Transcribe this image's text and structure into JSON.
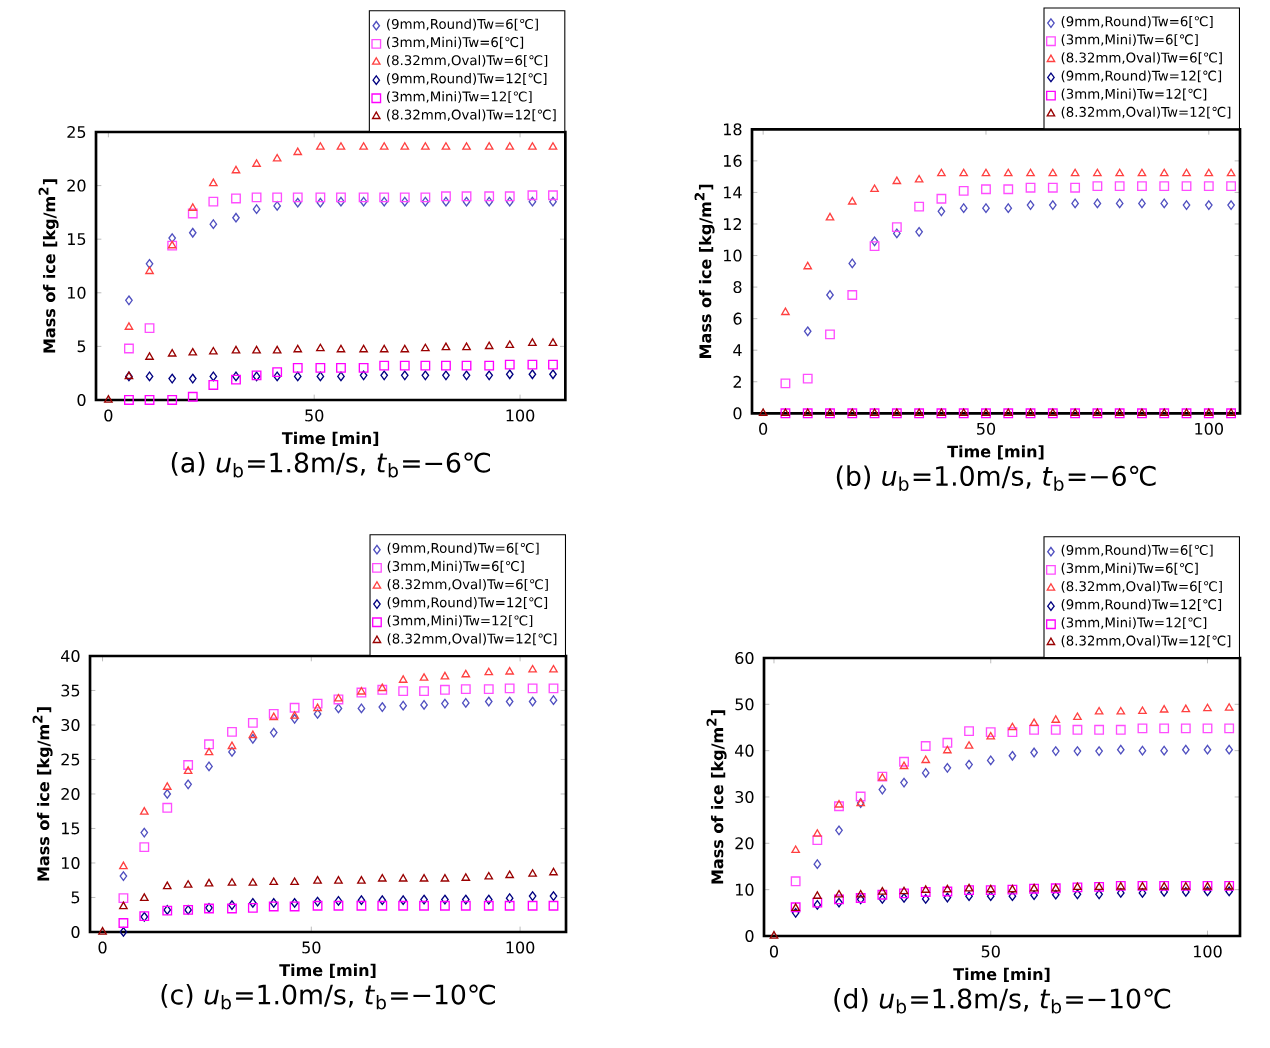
{
  "chart_data": [
    {
      "type": "scatter",
      "title": "(a) *u*$_{b}$=1.8m/s, *t*$_{b}$=−6℃",
      "xlabel": "Time [min]",
      "ylabel": "Mass of ice [kg/m$^{2}$]",
      "xlim": [
        -3,
        111
      ],
      "ylim": [
        0,
        25
      ],
      "xticks": [
        0,
        50,
        100
      ],
      "yticks": [
        0,
        5,
        10,
        15,
        20,
        25
      ],
      "legend": "top right",
      "x": [
        0,
        5,
        10,
        15.5,
        20.5,
        25.5,
        31,
        36,
        41,
        46,
        51.5,
        56.5,
        62,
        67,
        72,
        77,
        82,
        87,
        92.5,
        97.5,
        103,
        108
      ],
      "series": [
        {
          "name": "(9mm,Round)Tw=6[℃]",
          "color": "#5050c0",
          "marker": "diamond",
          "values": [
            null,
            9.3,
            12.7,
            15.1,
            15.6,
            16.4,
            17.0,
            17.8,
            18.1,
            18.4,
            18.4,
            18.5,
            18.5,
            18.5,
            18.5,
            18.5,
            18.5,
            18.5,
            18.5,
            18.5,
            18.5,
            18.5
          ]
        },
        {
          "name": "(3mm,Mini)Tw=6[℃]",
          "color": "#ff4dff",
          "marker": "square",
          "values": [
            null,
            4.8,
            6.7,
            14.4,
            17.4,
            18.5,
            18.8,
            18.9,
            18.9,
            18.9,
            18.9,
            18.9,
            18.9,
            18.9,
            18.9,
            18.9,
            19.0,
            19.0,
            19.0,
            19.0,
            19.1,
            19.1
          ]
        },
        {
          "name": "(8.32mm,Oval)Tw=6[℃]",
          "color": "#ff4040",
          "marker": "triangle",
          "values": [
            null,
            6.8,
            12.0,
            14.4,
            17.9,
            20.2,
            21.4,
            22.0,
            22.5,
            23.1,
            23.6,
            23.6,
            23.6,
            23.6,
            23.6,
            23.6,
            23.6,
            23.6,
            23.6,
            23.6,
            23.6,
            23.6
          ]
        },
        {
          "name": "(9mm,Round)Tw=12[℃]",
          "color": "#000080",
          "marker": "diamond",
          "values": [
            null,
            2.2,
            2.2,
            2.0,
            2.0,
            2.2,
            2.2,
            2.2,
            2.2,
            2.2,
            2.2,
            2.2,
            2.3,
            2.3,
            2.3,
            2.3,
            2.3,
            2.3,
            2.3,
            2.4,
            2.4,
            2.4
          ]
        },
        {
          "name": "(3mm,Mini)Tw=12[℃]",
          "color": "#ff00ff",
          "marker": "square",
          "values": [
            null,
            0,
            0,
            0,
            0.3,
            1.4,
            1.9,
            2.3,
            2.6,
            3.0,
            3.0,
            3.0,
            3.0,
            3.2,
            3.2,
            3.2,
            3.2,
            3.2,
            3.2,
            3.3,
            3.3,
            3.3
          ]
        },
        {
          "name": "(8.32mm,Oval)Tw=12[℃]",
          "color": "#990000",
          "marker": "triangle",
          "values": [
            0,
            2.2,
            4.0,
            4.3,
            4.4,
            4.5,
            4.6,
            4.6,
            4.6,
            4.7,
            4.8,
            4.7,
            4.7,
            4.7,
            4.7,
            4.8,
            4.9,
            4.9,
            5.0,
            5.1,
            5.3,
            5.3
          ]
        }
      ]
    },
    {
      "type": "scatter",
      "title": "(b) *u*$_{b}$=1.0m/s, *t*$_{b}$=−6℃",
      "xlabel": "Time [min]",
      "ylabel": "Mass of ice [kg/m$^{2}$]",
      "xlim": [
        -2.5,
        107
      ],
      "ylim": [
        0,
        18
      ],
      "xticks": [
        0,
        50,
        100
      ],
      "yticks": [
        0,
        2,
        4,
        6,
        8,
        10,
        12,
        14,
        16,
        18
      ],
      "legend": "top right",
      "x": [
        0,
        5,
        10,
        15,
        20,
        25,
        30,
        35,
        40,
        45,
        50,
        55,
        60,
        65,
        70,
        75,
        80,
        85,
        90,
        95,
        100,
        105
      ],
      "series": [
        {
          "name": "(9mm,Round)Tw=6[℃]",
          "color": "#5050c0",
          "marker": "diamond",
          "values": [
            null,
            null,
            5.2,
            7.5,
            9.5,
            10.9,
            11.4,
            11.5,
            12.8,
            13.0,
            13.0,
            13.0,
            13.2,
            13.2,
            13.3,
            13.3,
            13.3,
            13.3,
            13.3,
            13.2,
            13.2,
            13.2
          ]
        },
        {
          "name": "(3mm,Mini)Tw=6[℃]",
          "color": "#ff4dff",
          "marker": "square",
          "values": [
            null,
            1.9,
            2.2,
            5.0,
            7.5,
            10.6,
            11.8,
            13.1,
            13.6,
            14.1,
            14.2,
            14.2,
            14.3,
            14.3,
            14.3,
            14.4,
            14.4,
            14.4,
            14.4,
            14.4,
            14.4,
            14.4
          ]
        },
        {
          "name": "(8.32mm,Oval)Tw=6[℃]",
          "color": "#ff4040",
          "marker": "triangle",
          "values": [
            null,
            6.4,
            9.3,
            12.4,
            13.4,
            14.2,
            14.7,
            14.8,
            15.2,
            15.2,
            15.2,
            15.2,
            15.2,
            15.2,
            15.2,
            15.2,
            15.2,
            15.2,
            15.2,
            15.2,
            15.2,
            15.2
          ]
        },
        {
          "name": "(9mm,Round)Tw=12[℃]",
          "color": "#000080",
          "marker": "diamond",
          "values": [
            null,
            null,
            null,
            null,
            null,
            null,
            null,
            null,
            null,
            null,
            null,
            null,
            null,
            null,
            null,
            null,
            null,
            null,
            null,
            null,
            null,
            null
          ]
        },
        {
          "name": "(3mm,Mini)Tw=12[℃]",
          "color": "#ff00ff",
          "marker": "square",
          "values": [
            null,
            0,
            0,
            0,
            0,
            0,
            0,
            0,
            0,
            0,
            0,
            0,
            0,
            0,
            0,
            0,
            0,
            0,
            0,
            0,
            0,
            0
          ]
        },
        {
          "name": "(8.32mm,Oval)Tw=12[℃]",
          "color": "#990000",
          "marker": "triangle",
          "values": [
            0,
            0,
            0,
            0,
            0,
            0,
            0,
            0,
            0,
            0,
            0,
            0,
            0,
            0,
            0,
            0,
            0,
            0,
            0,
            0,
            0,
            0
          ]
        }
      ]
    },
    {
      "type": "scatter",
      "title": "(c) *u*$_{b}$=1.0m/s, *t*$_{b}$=−10℃",
      "xlabel": "Time [min]",
      "ylabel": "Mass of ice [kg/m$^{2}$]",
      "xlim": [
        -3,
        111
      ],
      "ylim": [
        0,
        40
      ],
      "xticks": [
        0,
        50,
        100
      ],
      "yticks": [
        0,
        5,
        10,
        15,
        20,
        25,
        30,
        35,
        40
      ],
      "legend": "top right",
      "x": [
        0,
        5,
        10,
        15.5,
        20.5,
        25.5,
        31,
        36,
        41,
        46,
        51.5,
        56.5,
        62,
        67,
        72,
        77,
        82,
        87,
        92.5,
        97.5,
        103,
        108
      ],
      "series": [
        {
          "name": "(9mm,Round)Tw=6[℃]",
          "color": "#5050c0",
          "marker": "diamond",
          "values": [
            null,
            8.1,
            14.4,
            20.0,
            21.4,
            24.0,
            26.1,
            28.0,
            28.9,
            30.9,
            31.6,
            32.4,
            32.4,
            32.6,
            32.8,
            32.9,
            33.1,
            33.2,
            33.4,
            33.4,
            33.4,
            33.6
          ]
        },
        {
          "name": "(3mm,Mini)Tw=6[℃]",
          "color": "#ff4dff",
          "marker": "square",
          "values": [
            null,
            4.9,
            12.3,
            18.0,
            24.2,
            27.2,
            29.0,
            30.3,
            31.6,
            32.5,
            33.1,
            33.7,
            34.7,
            35.1,
            34.9,
            34.9,
            35.1,
            35.2,
            35.2,
            35.3,
            35.3,
            35.3
          ]
        },
        {
          "name": "(8.32mm,Oval)Tw=6[℃]",
          "color": "#ff4040",
          "marker": "triangle",
          "values": [
            null,
            9.5,
            17.4,
            21.0,
            23.3,
            26.0,
            26.9,
            28.5,
            31.1,
            31.3,
            32.4,
            33.8,
            34.8,
            35.3,
            36.5,
            36.8,
            37.0,
            37.3,
            37.6,
            37.7,
            38.0,
            38.0
          ]
        },
        {
          "name": "(9mm,Round)Tw=12[℃]",
          "color": "#000080",
          "marker": "diamond",
          "values": [
            null,
            0,
            2.2,
            3.2,
            3.2,
            3.5,
            3.9,
            4.2,
            4.2,
            4.2,
            4.4,
            4.5,
            4.6,
            4.6,
            4.6,
            4.7,
            4.7,
            4.7,
            4.7,
            4.9,
            5.2,
            5.2
          ]
        },
        {
          "name": "(3mm,Mini)Tw=12[℃]",
          "color": "#ff00ff",
          "marker": "square",
          "values": [
            null,
            1.3,
            2.3,
            3.1,
            3.2,
            3.4,
            3.4,
            3.5,
            3.7,
            3.7,
            3.8,
            3.8,
            3.8,
            3.8,
            3.8,
            3.8,
            3.8,
            3.8,
            3.8,
            3.8,
            3.8,
            3.8
          ]
        },
        {
          "name": "(8.32mm,Oval)Tw=12[℃]",
          "color": "#990000",
          "marker": "triangle",
          "values": [
            0,
            3.7,
            4.9,
            6.6,
            6.8,
            7.0,
            7.1,
            7.1,
            7.2,
            7.2,
            7.4,
            7.4,
            7.4,
            7.7,
            7.7,
            7.7,
            7.7,
            7.8,
            8.0,
            8.2,
            8.4,
            8.6
          ]
        }
      ]
    },
    {
      "type": "scatter",
      "title": "(d) *u*$_{b}$=1.8m/s, *t*$_{b}$=−10℃",
      "xlabel": "Time [min]",
      "ylabel": "Mass of ice [kg/m$^{2}$]",
      "xlim": [
        -2.3,
        107.5
      ],
      "ylim": [
        0,
        60
      ],
      "xticks": [
        0,
        50,
        100
      ],
      "yticks": [
        0,
        10,
        20,
        30,
        40,
        50,
        60
      ],
      "legend": "top right",
      "x": [
        0,
        5,
        10,
        15,
        20,
        25,
        30,
        35,
        40,
        45,
        50,
        55,
        60,
        65,
        70,
        75,
        80,
        85,
        90,
        95,
        100,
        105
      ],
      "series": [
        {
          "name": "(9mm,Round)Tw=6[℃]",
          "color": "#5050c0",
          "marker": "diamond",
          "values": [
            null,
            null,
            15.5,
            22.8,
            28.7,
            31.6,
            33.1,
            35.2,
            36.3,
            37.0,
            37.9,
            38.9,
            39.6,
            39.9,
            39.9,
            39.9,
            40.2,
            40.0,
            40.0,
            40.2,
            40.2,
            40.2
          ]
        },
        {
          "name": "(3mm,Mini)Tw=6[℃]",
          "color": "#ff4dff",
          "marker": "square",
          "values": [
            null,
            11.8,
            20.7,
            28.0,
            30.1,
            34.4,
            37.6,
            41.0,
            41.7,
            44.2,
            44.0,
            44.0,
            44.5,
            44.5,
            44.5,
            44.5,
            44.5,
            44.8,
            44.8,
            44.8,
            44.8,
            44.8
          ]
        },
        {
          "name": "(8.32mm,Oval)Tw=6[℃]",
          "color": "#ff4040",
          "marker": "triangle",
          "values": [
            null,
            18.5,
            22.0,
            28.3,
            28.6,
            34.1,
            36.6,
            37.9,
            40.0,
            41.0,
            43.0,
            45.0,
            45.9,
            46.6,
            47.2,
            48.4,
            48.4,
            48.5,
            48.8,
            48.9,
            49.1,
            49.2
          ]
        },
        {
          "name": "(9mm,Round)Tw=12[℃]",
          "color": "#000080",
          "marker": "diamond",
          "values": [
            null,
            5.0,
            6.7,
            7.2,
            7.9,
            8.0,
            8.2,
            8.0,
            8.3,
            8.6,
            8.6,
            8.6,
            8.8,
            8.9,
            9.0,
            9.0,
            9.3,
            9.3,
            9.5,
            9.5,
            9.6,
            9.6
          ]
        },
        {
          "name": "(3mm,Mini)Tw=12[℃]",
          "color": "#ff00ff",
          "marker": "square",
          "values": [
            null,
            6.2,
            7.2,
            7.9,
            8.2,
            8.9,
            9.2,
            9.5,
            9.6,
            9.9,
            9.9,
            10.0,
            10.2,
            10.3,
            10.5,
            10.6,
            10.8,
            10.8,
            10.8,
            10.8,
            10.8,
            10.8
          ]
        },
        {
          "name": "(8.32mm,Oval)Tw=12[℃]",
          "color": "#990000",
          "marker": "triangle",
          "values": [
            0,
            6.0,
            8.6,
            8.9,
            8.9,
            9.5,
            9.6,
            9.9,
            10.0,
            10.2,
            10.0,
            10.0,
            10.2,
            10.2,
            10.5,
            10.5,
            10.6,
            10.6,
            10.6,
            10.6,
            10.6,
            10.6
          ]
        }
      ]
    }
  ]
}
